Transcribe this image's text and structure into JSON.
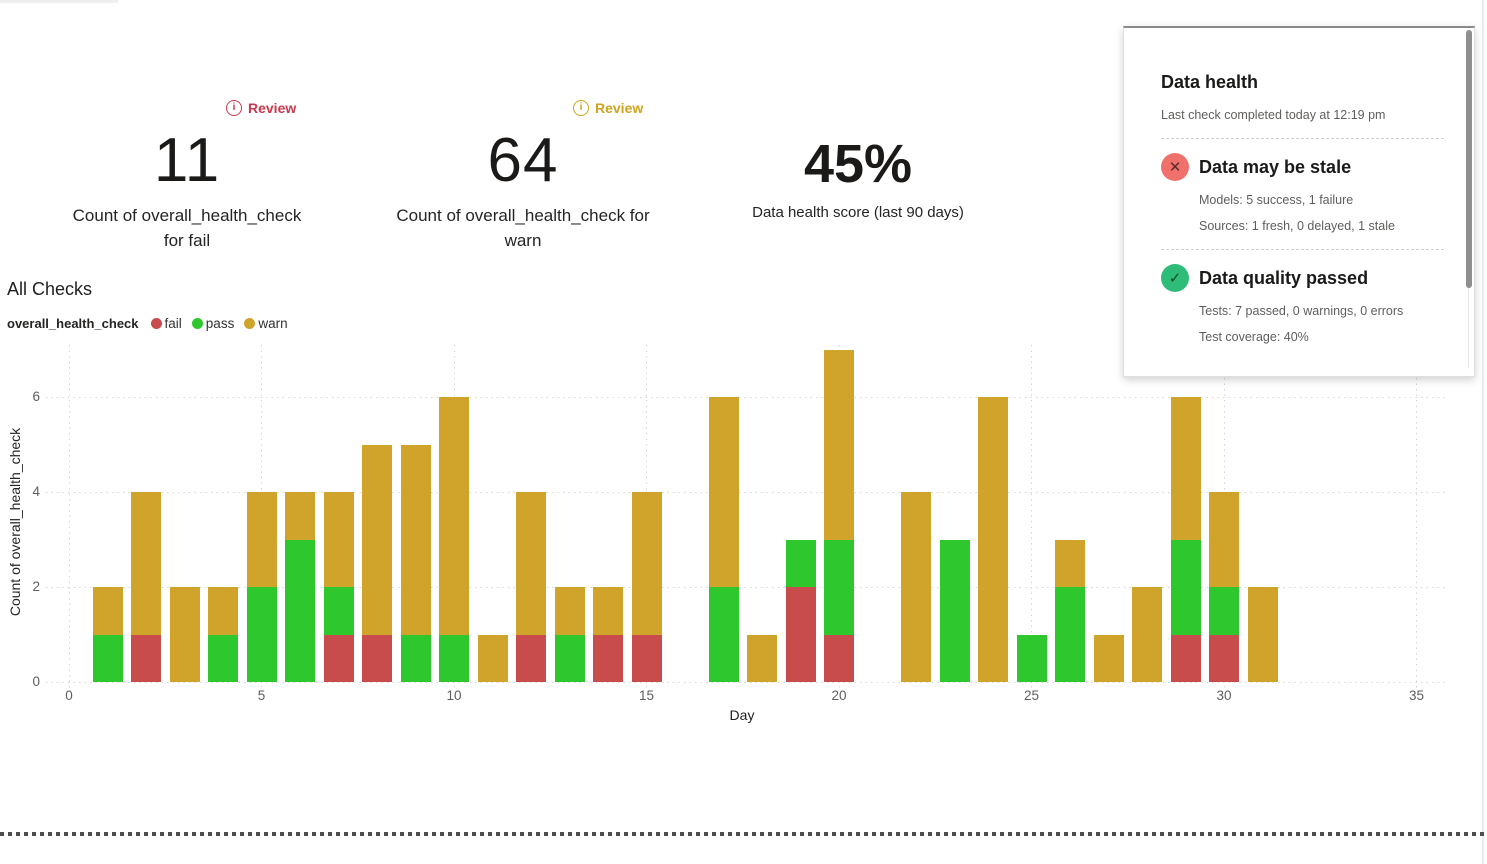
{
  "kpis": [
    {
      "value": "11",
      "label": "Count of overall_health_check for fail",
      "badge_label": "Review",
      "badge_color": "#c8384e"
    },
    {
      "value": "64",
      "label": "Count of overall_health_check for warn",
      "badge_label": "Review",
      "badge_color": "#cda41d"
    },
    {
      "value": "45%",
      "label": "Data health score (last 90 days)"
    }
  ],
  "health_panel": {
    "title": "Data health",
    "subtitle": "Last check completed today at 12:19 pm",
    "sections": [
      {
        "status": "fail",
        "icon": "x-circle-icon",
        "icon_color": "#f0716b",
        "title": "Data may be stale",
        "lines": [
          "Models: 5 success, 1 failure",
          "Sources: 1 fresh, 0 delayed, 1 stale"
        ]
      },
      {
        "status": "pass",
        "icon": "check-circle-icon",
        "icon_color": "#2dbd78",
        "title": "Data quality passed",
        "lines": [
          "Tests: 7 passed, 0 warnings, 0 errors",
          "Test coverage: 40%"
        ]
      }
    ]
  },
  "section_title": "All Checks",
  "legend": {
    "measure": "overall_health_check",
    "items": [
      {
        "label": "fail",
        "color": "#c94c4c"
      },
      {
        "label": "pass",
        "color": "#2ec82e"
      },
      {
        "label": "warn",
        "color": "#d0a32a"
      }
    ]
  },
  "chart_data": {
    "type": "bar",
    "stacked": true,
    "title": "All Checks",
    "xlabel": "Day",
    "ylabel": "Count of overall_health_check",
    "x_ticks": [
      0,
      5,
      10,
      15,
      20,
      25,
      30,
      35
    ],
    "y_ticks": [
      0,
      2,
      4,
      6
    ],
    "xlim": [
      0,
      36
    ],
    "ylim": [
      0,
      7.3
    ],
    "grid": "dotted",
    "legend_position": "top-left",
    "series_order": [
      "fail",
      "pass",
      "warn"
    ],
    "colors": {
      "fail": "#c94c4c",
      "pass": "#2ec82e",
      "warn": "#d0a32a"
    },
    "days": [
      {
        "day": 1,
        "fail": 0,
        "pass": 1,
        "warn": 1
      },
      {
        "day": 2,
        "fail": 1,
        "pass": 0,
        "warn": 3
      },
      {
        "day": 3,
        "fail": 0,
        "pass": 0,
        "warn": 2
      },
      {
        "day": 4,
        "fail": 0,
        "pass": 1,
        "warn": 1
      },
      {
        "day": 5,
        "fail": 0,
        "pass": 2,
        "warn": 2
      },
      {
        "day": 6,
        "fail": 0,
        "pass": 3,
        "warn": 1
      },
      {
        "day": 7,
        "fail": 1,
        "pass": 1,
        "warn": 2
      },
      {
        "day": 8,
        "fail": 1,
        "pass": 0,
        "warn": 4
      },
      {
        "day": 9,
        "fail": 0,
        "pass": 1,
        "warn": 4
      },
      {
        "day": 10,
        "fail": 0,
        "pass": 1,
        "warn": 5
      },
      {
        "day": 11,
        "fail": 0,
        "pass": 0,
        "warn": 1
      },
      {
        "day": 12,
        "fail": 1,
        "pass": 0,
        "warn": 3
      },
      {
        "day": 13,
        "fail": 0,
        "pass": 1,
        "warn": 1
      },
      {
        "day": 14,
        "fail": 1,
        "pass": 0,
        "warn": 1
      },
      {
        "day": 15,
        "fail": 1,
        "pass": 0,
        "warn": 3
      },
      {
        "day": 17,
        "fail": 0,
        "pass": 2,
        "warn": 4
      },
      {
        "day": 18,
        "fail": 0,
        "pass": 0,
        "warn": 1
      },
      {
        "day": 19,
        "fail": 2,
        "pass": 1,
        "warn": 0
      },
      {
        "day": 20,
        "fail": 1,
        "pass": 2,
        "warn": 4
      },
      {
        "day": 22,
        "fail": 0,
        "pass": 0,
        "warn": 4
      },
      {
        "day": 23,
        "fail": 0,
        "pass": 3,
        "warn": 0
      },
      {
        "day": 24,
        "fail": 0,
        "pass": 0,
        "warn": 6
      },
      {
        "day": 25,
        "fail": 0,
        "pass": 1,
        "warn": 0
      },
      {
        "day": 26,
        "fail": 0,
        "pass": 2,
        "warn": 1
      },
      {
        "day": 27,
        "fail": 0,
        "pass": 0,
        "warn": 1
      },
      {
        "day": 28,
        "fail": 0,
        "pass": 0,
        "warn": 2
      },
      {
        "day": 29,
        "fail": 1,
        "pass": 2,
        "warn": 3
      },
      {
        "day": 30,
        "fail": 1,
        "pass": 1,
        "warn": 2
      },
      {
        "day": 31,
        "fail": 0,
        "pass": 0,
        "warn": 2
      }
    ]
  }
}
